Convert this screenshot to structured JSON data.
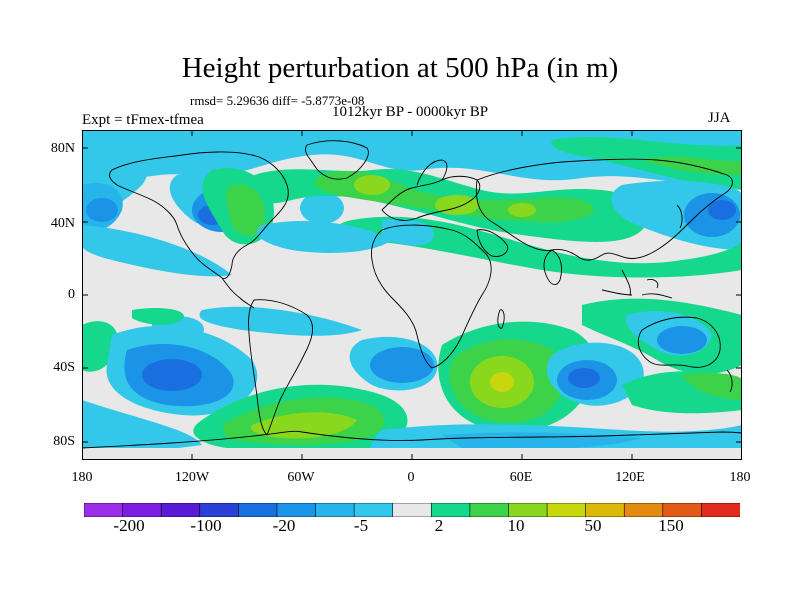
{
  "title": "Height perturbation at 500 hPa (in m)",
  "stats": "rmsd= 5.29636  diff= -5.8773e-08",
  "period": "1012kyr BP - 0000kyr BP",
  "experiment": "Expt = tFmex-tfmea",
  "season": "JJA",
  "y_ticks": [
    "80N",
    "40N",
    "0",
    "40S",
    "80S"
  ],
  "x_ticks": [
    "180",
    "120W",
    "60W",
    "0",
    "60E",
    "120E",
    "180"
  ],
  "colorbar": {
    "labels": [
      "-200",
      "-100",
      "-20",
      "-5",
      "2",
      "10",
      "50",
      "150"
    ],
    "colors": [
      "#9b2ee8",
      "#7d1ee3",
      "#5a1ad6",
      "#2b40d6",
      "#1a6fe0",
      "#1b93e6",
      "#27b4ea",
      "#33c8ea",
      "#e8e8e8",
      "#16d88c",
      "#3cd24a",
      "#8ad81e",
      "#c8d60e",
      "#dcb808",
      "#e38a10",
      "#e25a18",
      "#e02a1e"
    ]
  },
  "colors": {
    "neutral": "#e8e8e8",
    "light_blue": "#33c8ea",
    "mid_blue": "#27b4ea",
    "blue": "#1b93e6",
    "dark_blue": "#1a6fe0",
    "green_cyan": "#16d88c",
    "green": "#3cd24a",
    "yellow_green": "#8ad81e",
    "coast": "#000000"
  }
}
